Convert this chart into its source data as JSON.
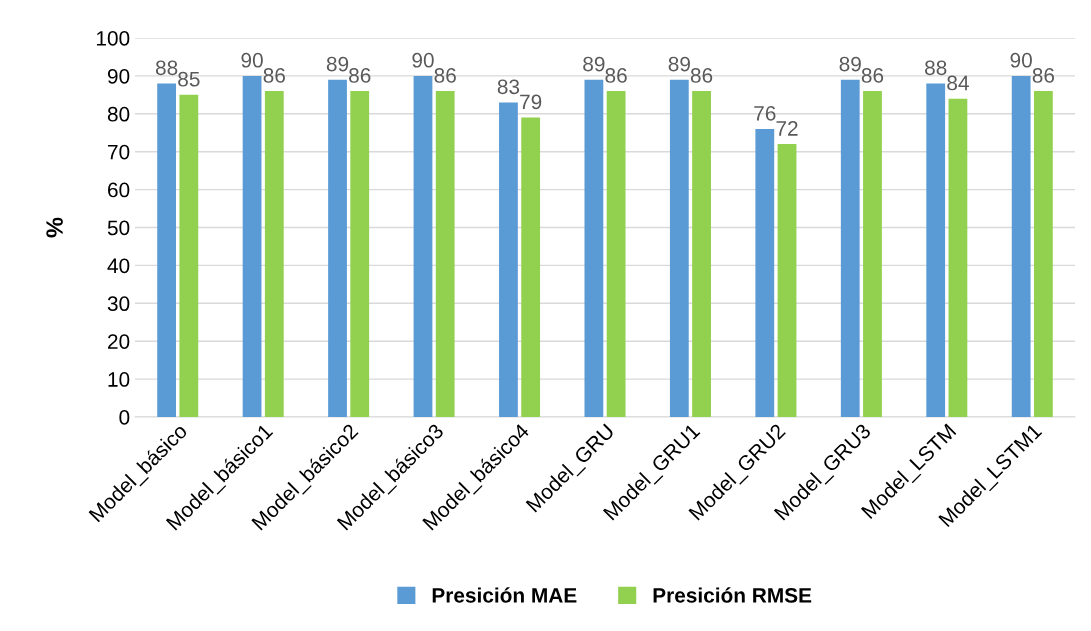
{
  "chart_data": {
    "type": "bar",
    "ylabel": "%",
    "categories": [
      "Model_básico",
      "Model_básico1",
      "Model_básico2",
      "Model_básico3",
      "Model_básico4",
      "Model_GRU",
      "Model_GRU1",
      "Model_GRU2",
      "Model_GRU3",
      "Model_LSTM",
      "Model_LSTM1"
    ],
    "series": [
      {
        "name": "Presición MAE",
        "color": "#5b9bd5",
        "values": [
          88,
          90,
          89,
          90,
          83,
          89,
          89,
          76,
          89,
          88,
          90
        ]
      },
      {
        "name": "Presición RMSE",
        "color": "#92d050",
        "values": [
          85,
          86,
          86,
          86,
          79,
          86,
          86,
          72,
          86,
          84,
          86
        ]
      }
    ],
    "ylim": [
      0,
      100
    ],
    "yticks": [
      0,
      10,
      20,
      30,
      40,
      50,
      60,
      70,
      80,
      90,
      100
    ],
    "grid": "y",
    "legend": "bottom",
    "data_labels": true
  }
}
